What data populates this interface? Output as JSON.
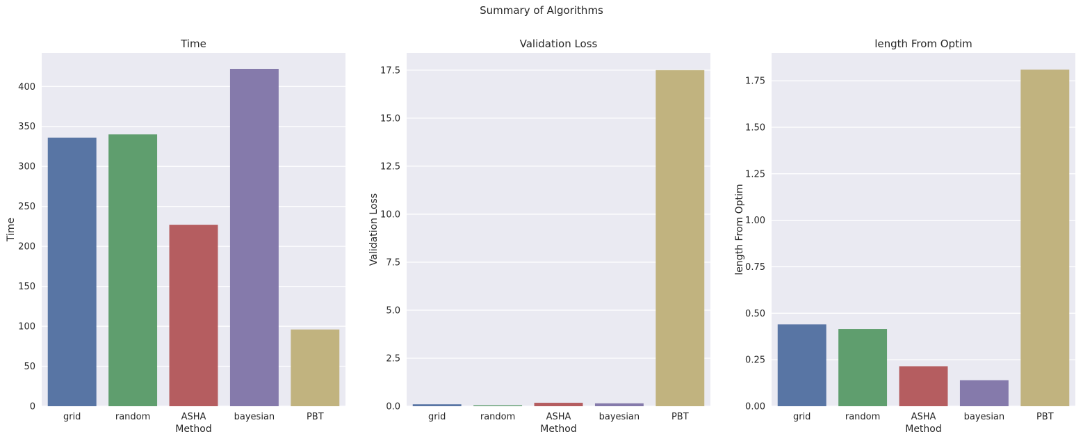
{
  "figure": {
    "suptitle": "Summary of Algorithms"
  },
  "chart_data": [
    {
      "type": "bar",
      "title": "Time",
      "xlabel": "Method",
      "ylabel": "Time",
      "categories": [
        "grid",
        "random",
        "ASHA",
        "bayesian",
        "PBT"
      ],
      "values": [
        336,
        340,
        227,
        422,
        96
      ],
      "ylim": [
        0,
        442
      ],
      "yticks": [
        0,
        50,
        100,
        150,
        200,
        250,
        300,
        350,
        400
      ],
      "ytick_labels": [
        "0",
        "50",
        "100",
        "150",
        "200",
        "250",
        "300",
        "350",
        "400"
      ],
      "grid": true,
      "colors": [
        "#5875a4",
        "#5f9e6e",
        "#b55d60",
        "#857aab",
        "#c1b37f"
      ]
    },
    {
      "type": "bar",
      "title": "Validation Loss",
      "xlabel": "Method",
      "ylabel": "Validation Loss",
      "categories": [
        "grid",
        "random",
        "ASHA",
        "bayesian",
        "PBT"
      ],
      "values": [
        0.1,
        0.05,
        0.18,
        0.15,
        17.5
      ],
      "ylim": [
        0,
        18.4
      ],
      "yticks": [
        0,
        2.5,
        5,
        7.5,
        10,
        12.5,
        15,
        17.5
      ],
      "ytick_labels": [
        "0.0",
        "2.5",
        "5.0",
        "7.5",
        "10.0",
        "12.5",
        "15.0",
        "17.5"
      ],
      "grid": true,
      "colors": [
        "#5875a4",
        "#5f9e6e",
        "#b55d60",
        "#857aab",
        "#c1b37f"
      ]
    },
    {
      "type": "bar",
      "title": "length From Optim",
      "xlabel": "Method",
      "ylabel": "length From Optim",
      "categories": [
        "grid",
        "random",
        "ASHA",
        "bayesian",
        "PBT"
      ],
      "values": [
        0.44,
        0.415,
        0.215,
        0.14,
        1.81
      ],
      "ylim": [
        0,
        1.9
      ],
      "yticks": [
        0,
        0.25,
        0.5,
        0.75,
        1.0,
        1.25,
        1.5,
        1.75
      ],
      "ytick_labels": [
        "0.00",
        "0.25",
        "0.50",
        "0.75",
        "1.00",
        "1.25",
        "1.50",
        "1.75"
      ],
      "grid": true,
      "colors": [
        "#5875a4",
        "#5f9e6e",
        "#b55d60",
        "#857aab",
        "#c1b37f"
      ]
    }
  ]
}
